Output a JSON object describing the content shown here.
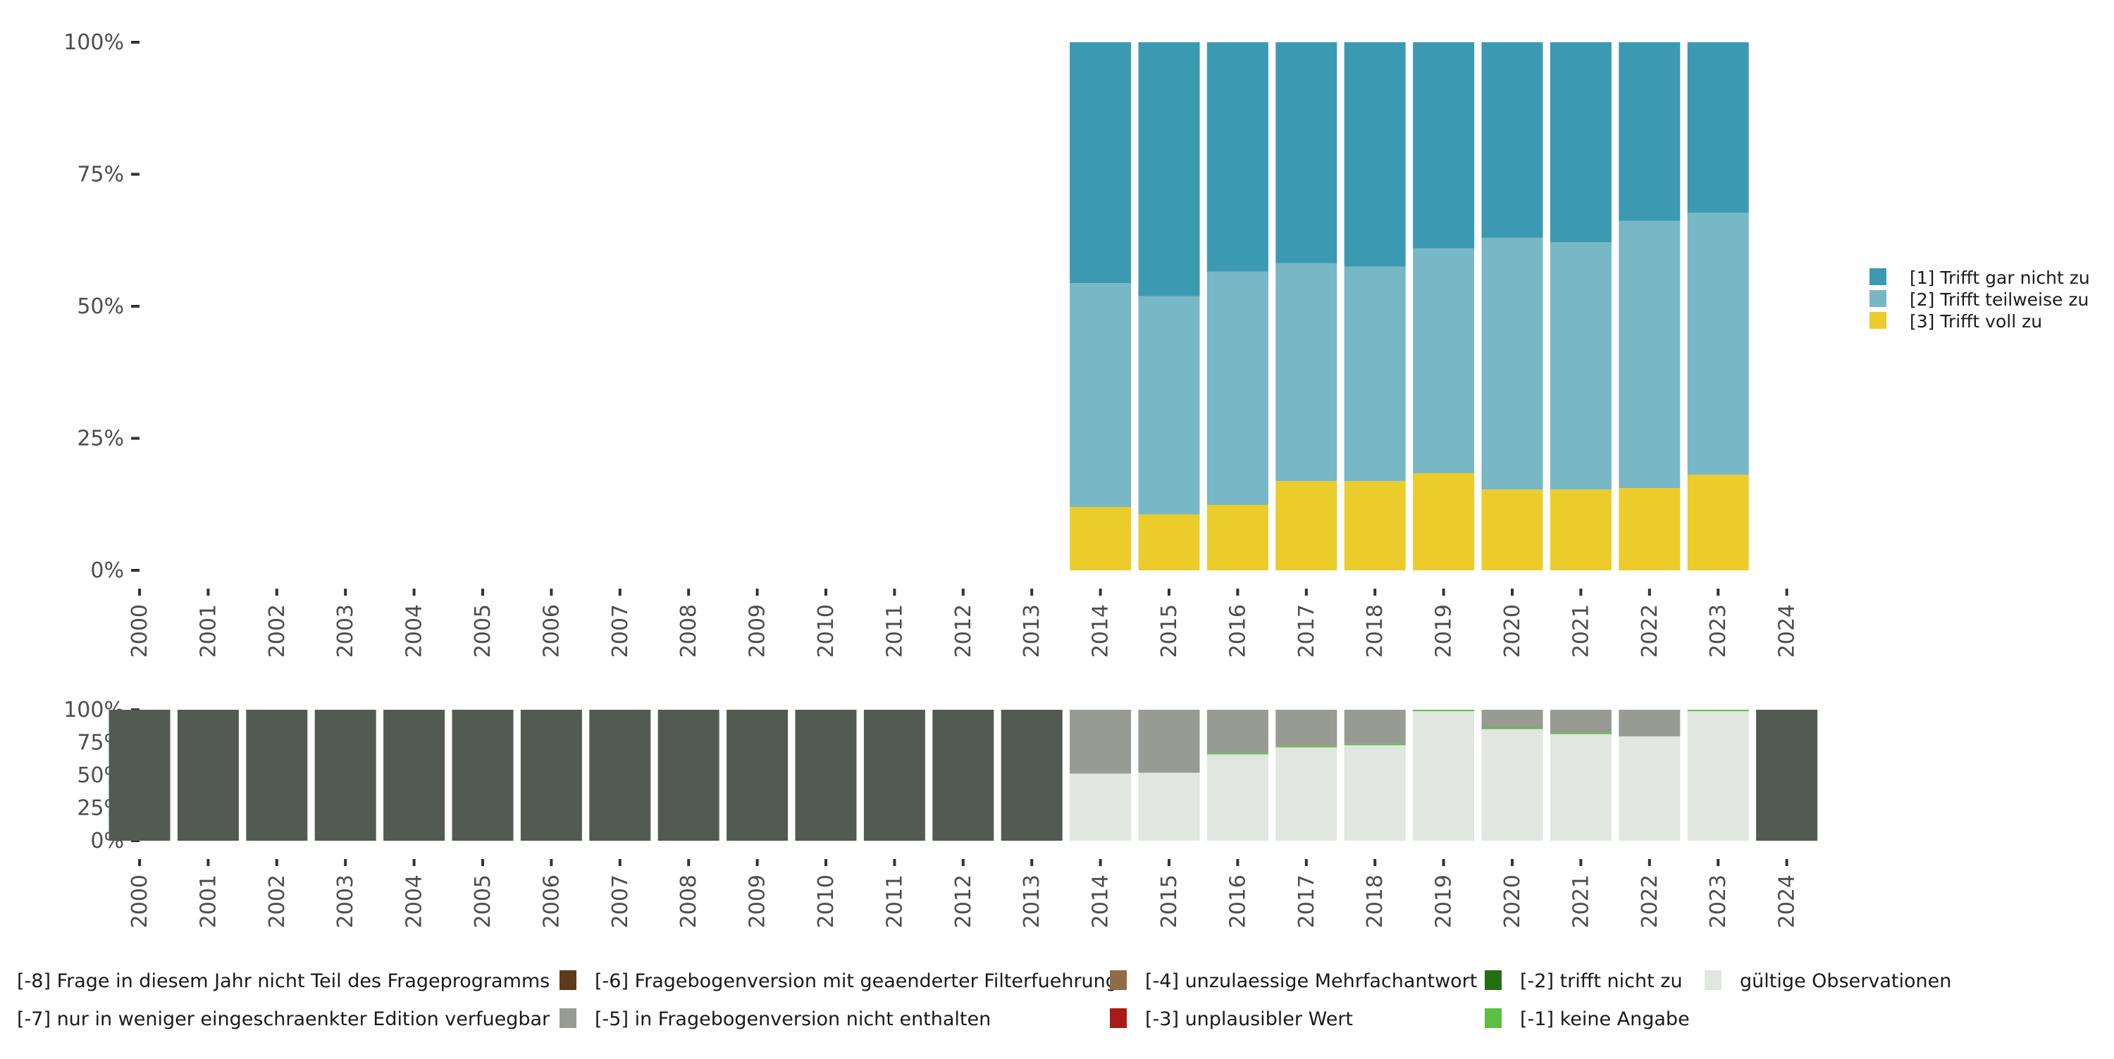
{
  "chart_data": [
    {
      "type": "bar",
      "stacked": true,
      "title": "",
      "xlabel": "",
      "ylabel": "",
      "ylim": [
        0,
        100
      ],
      "yticks": [
        "0%",
        "25%",
        "50%",
        "75%",
        "100%"
      ],
      "categories": [
        "2000",
        "2001",
        "2002",
        "2003",
        "2004",
        "2005",
        "2006",
        "2007",
        "2008",
        "2009",
        "2010",
        "2011",
        "2012",
        "2013",
        "2014",
        "2015",
        "2016",
        "2017",
        "2018",
        "2019",
        "2020",
        "2021",
        "2022",
        "2023",
        "2024"
      ],
      "legend_position": "right",
      "series": [
        {
          "name": "[3] Trifft voll zu",
          "color": "#ebcc2a",
          "values": [
            null,
            null,
            null,
            null,
            null,
            null,
            null,
            null,
            null,
            null,
            null,
            null,
            null,
            null,
            12.0,
            10.6,
            12.4,
            16.9,
            16.9,
            18.4,
            15.3,
            15.3,
            15.6,
            18.1,
            null
          ]
        },
        {
          "name": "[2] Trifft teilweise zu",
          "color": "#78b7c5",
          "values": [
            null,
            null,
            null,
            null,
            null,
            null,
            null,
            null,
            null,
            null,
            null,
            null,
            null,
            null,
            42.4,
            41.3,
            44.2,
            41.3,
            40.6,
            42.6,
            47.7,
            46.8,
            50.6,
            49.6,
            null
          ]
        },
        {
          "name": "[1] Trifft gar nicht zu",
          "color": "#3b9ab2",
          "values": [
            null,
            null,
            null,
            null,
            null,
            null,
            null,
            null,
            null,
            null,
            null,
            null,
            null,
            null,
            45.6,
            48.1,
            43.4,
            41.8,
            42.5,
            39.0,
            37.0,
            37.9,
            33.8,
            32.3,
            null
          ]
        }
      ]
    },
    {
      "type": "bar",
      "stacked": true,
      "title": "",
      "xlabel": "",
      "ylabel": "",
      "ylim": [
        0,
        100
      ],
      "yticks": [
        "0%",
        "25%",
        "50%",
        "75%",
        "100%"
      ],
      "categories": [
        "2000",
        "2001",
        "2002",
        "2003",
        "2004",
        "2005",
        "2006",
        "2007",
        "2008",
        "2009",
        "2010",
        "2011",
        "2012",
        "2013",
        "2014",
        "2015",
        "2016",
        "2017",
        "2018",
        "2019",
        "2020",
        "2021",
        "2022",
        "2023",
        "2024"
      ],
      "legend_position": "bottom",
      "series": [
        {
          "name": "gültige Observationen",
          "color": "#e1e6e1",
          "values": [
            0,
            0,
            0,
            0,
            0,
            0,
            0,
            0,
            0,
            0,
            0,
            0,
            0,
            0,
            51.3,
            51.9,
            66.6,
            72.0,
            73.7,
            99.5,
            86.0,
            82.2,
            79.7,
            99.5,
            0
          ]
        },
        {
          "name": "[-1] keine Angabe",
          "color": "#5bbf42",
          "values": [
            0,
            0,
            0,
            0,
            0,
            0,
            0,
            0,
            0,
            0,
            0,
            0,
            0,
            0,
            0,
            0,
            0.4,
            0.4,
            0.3,
            0.5,
            0.3,
            0.3,
            0,
            0.5,
            0
          ]
        },
        {
          "name": "[-2] trifft nicht zu",
          "color": "#246d12",
          "values": [
            0,
            0,
            0,
            0,
            0,
            0,
            0,
            0,
            0,
            0,
            0,
            0,
            0,
            0,
            0,
            0,
            0,
            0,
            0,
            0,
            0,
            0,
            0,
            0,
            0
          ]
        },
        {
          "name": "[-3] unplausibler Wert",
          "color": "#a91b17",
          "values": [
            0,
            0,
            0,
            0,
            0,
            0,
            0,
            0,
            0,
            0,
            0,
            0,
            0,
            0,
            0,
            0,
            0,
            0,
            0,
            0,
            0,
            0,
            0,
            0,
            0
          ]
        },
        {
          "name": "[-4] unzulaessige Mehrfachantwort",
          "color": "#8f6c46",
          "values": [
            0,
            0,
            0,
            0,
            0,
            0,
            0,
            0,
            0,
            0,
            0,
            0,
            0,
            0,
            0,
            0,
            0,
            0,
            0,
            0,
            0,
            0,
            0,
            0,
            0
          ]
        },
        {
          "name": "[-5] in Fragebogenversion nicht enthalten",
          "color": "#979b94",
          "values": [
            0,
            0,
            0,
            0,
            0,
            0,
            0,
            0,
            0,
            0,
            0,
            0,
            0,
            0,
            48.7,
            48.1,
            33.0,
            27.6,
            26.0,
            0,
            13.7,
            17.5,
            20.3,
            0,
            0
          ]
        },
        {
          "name": "[-6] Fragebogenversion mit geaenderter Filterfuehrung",
          "color": "#5c3a1a",
          "values": [
            0,
            0,
            0,
            0,
            0,
            0,
            0,
            0,
            0,
            0,
            0,
            0,
            0,
            0,
            0,
            0,
            0,
            0,
            0,
            0,
            0,
            0,
            0,
            0,
            0
          ]
        },
        {
          "name": "[-7] nur in weniger eingeschraenkter Edition verfuegbar",
          "color": "#979b94",
          "values": [
            0,
            0,
            0,
            0,
            0,
            0,
            0,
            0,
            0,
            0,
            0,
            0,
            0,
            0,
            0,
            0,
            0,
            0,
            0,
            0,
            0,
            0,
            0,
            0,
            0
          ]
        },
        {
          "name": "[-8] Frage in diesem Jahr nicht Teil des Frageprogramms",
          "color": "#535a53",
          "values": [
            100,
            100,
            100,
            100,
            100,
            100,
            100,
            100,
            100,
            100,
            100,
            100,
            100,
            100,
            0,
            0,
            0,
            0,
            0,
            0,
            0,
            0,
            0,
            0,
            100
          ]
        }
      ]
    }
  ],
  "bottom_legend": [
    {
      "label": "[-8] Frage in diesem Jahr nicht Teil des Frageprogramms",
      "color": "#535a53",
      "swatch": false
    },
    {
      "label": "[-7] nur in weniger eingeschraenkter Edition verfuegbar",
      "color": "#979b94",
      "swatch": false
    },
    {
      "label": "[-6] Fragebogenversion mit geaenderter Filterfuehrung",
      "color": "#5c3a1a",
      "swatch": true
    },
    {
      "label": "[-5] in Fragebogenversion nicht enthalten",
      "color": "#979b94",
      "swatch": true
    },
    {
      "label": "[-4] unzulaessige Mehrfachantwort",
      "color": "#8f6c46",
      "swatch": true
    },
    {
      "label": "[-3] unplausibler Wert",
      "color": "#a91b17",
      "swatch": true
    },
    {
      "label": "[-2] trifft nicht zu",
      "color": "#246d12",
      "swatch": true
    },
    {
      "label": "[-1] keine Angabe",
      "color": "#5bbf42",
      "swatch": true
    },
    {
      "label": "gültige Observationen",
      "color": "#e1e6e1",
      "swatch": true
    }
  ]
}
